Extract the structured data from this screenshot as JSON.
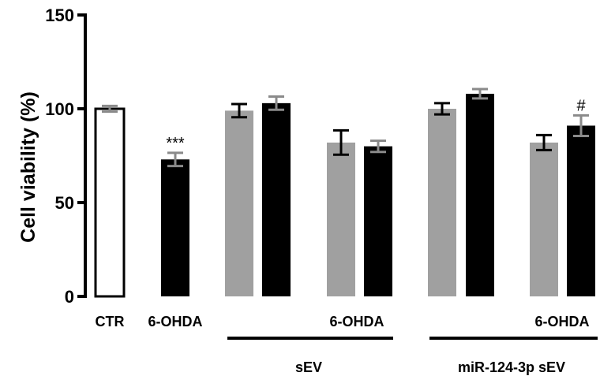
{
  "chart_data": {
    "type": "bar",
    "title": "",
    "xlabel": "",
    "ylabel": "Cell viability (%)",
    "ylim": [
      0,
      150
    ],
    "yticks": [
      "0",
      "50",
      "100",
      "150"
    ],
    "grid": false,
    "legend": "none",
    "bars": [
      {
        "value": 100,
        "error": 1.5,
        "fill": "#ffffff",
        "label": "CTR",
        "annotation": ""
      },
      {
        "value": 73,
        "error": 3.5,
        "fill": "#000000",
        "label": "6-OHDA",
        "annotation": "***"
      },
      {
        "value": 99,
        "error": 3.5,
        "fill": "#a0a0a0",
        "label": "",
        "annotation": ""
      },
      {
        "value": 103,
        "error": 3.5,
        "fill": "#000000",
        "label": "",
        "annotation": ""
      },
      {
        "value": 82,
        "error": 6.5,
        "fill": "#a0a0a0",
        "label": "",
        "annotation": ""
      },
      {
        "value": 80,
        "error": 3,
        "fill": "#000000",
        "label": "",
        "annotation": ""
      },
      {
        "value": 100,
        "error": 3,
        "fill": "#a0a0a0",
        "label": "",
        "annotation": ""
      },
      {
        "value": 108,
        "error": 2.5,
        "fill": "#000000",
        "label": "",
        "annotation": ""
      },
      {
        "value": 82,
        "error": 4,
        "fill": "#a0a0a0",
        "label": "",
        "annotation": ""
      },
      {
        "value": 91,
        "error": 5.5,
        "fill": "#000000",
        "label": "",
        "annotation": "#"
      }
    ],
    "sub_labels": [
      "6-OHDA",
      "6-OHDA"
    ],
    "groups": [
      "sEV",
      "miR-124-3p sEV"
    ]
  }
}
